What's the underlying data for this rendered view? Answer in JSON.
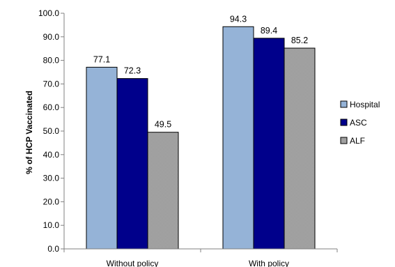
{
  "chart_data": {
    "type": "bar",
    "title": "",
    "xlabel": "",
    "ylabel": "% of HCP Vaccinated",
    "ylim": [
      0,
      100
    ],
    "yticks": [
      "0.0",
      "10.0",
      "20.0",
      "30.0",
      "40.0",
      "50.0",
      "60.0",
      "70.0",
      "80.0",
      "90.0",
      "100.0"
    ],
    "categories": [
      "Without policy",
      "With policy"
    ],
    "series": [
      {
        "name": "Hospital",
        "values": [
          77.1,
          94.3
        ],
        "labels": [
          "77.1",
          "94.3"
        ],
        "color": "#95b3d7"
      },
      {
        "name": "ASC",
        "values": [
          72.3,
          89.4
        ],
        "labels": [
          "72.3",
          "89.4"
        ],
        "color": "#00008b"
      },
      {
        "name": "ALF",
        "values": [
          49.5,
          85.2
        ],
        "labels": [
          "49.5",
          "85.2"
        ],
        "color": "#a6a6a6"
      }
    ],
    "legend": "right",
    "grid": false
  }
}
